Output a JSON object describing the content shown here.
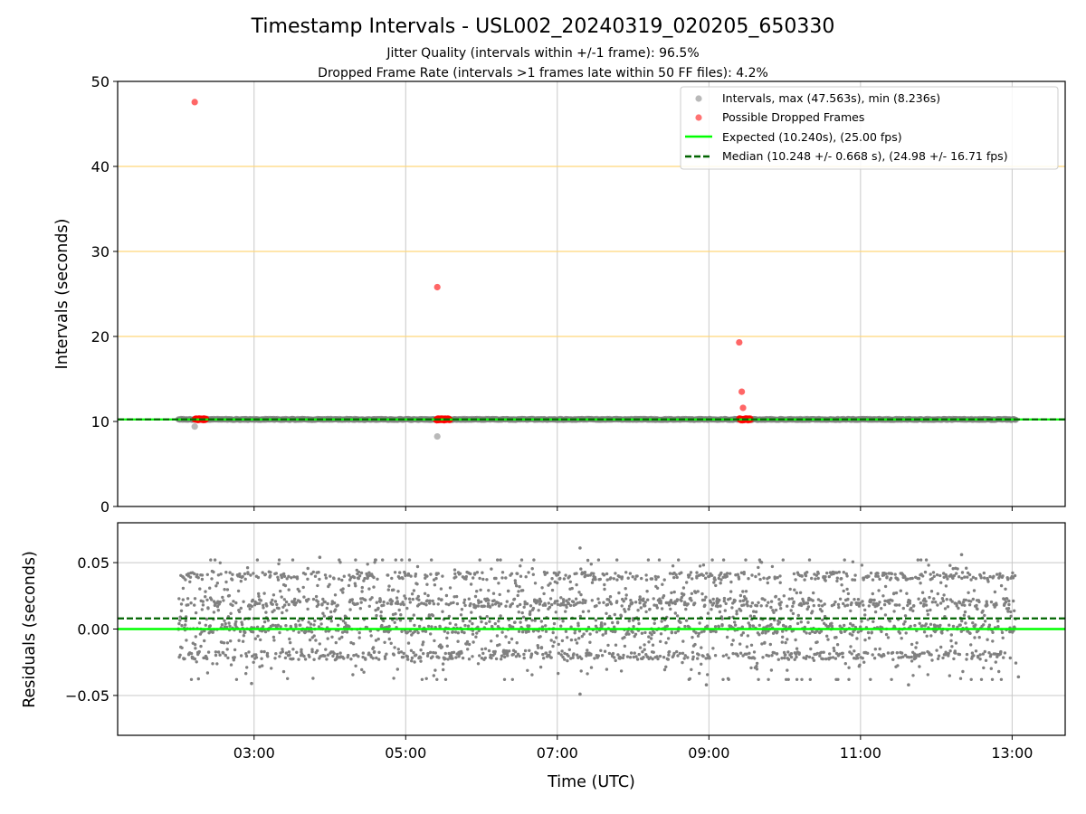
{
  "chart_data": [
    {
      "type": "scatter",
      "title": "Timestamp Intervals - USL002_20240319_020205_650330",
      "subtitle_lines": [
        "Jitter Quality (intervals within +/-1 frame): 96.5%",
        "Dropped Frame Rate (intervals >1 frames late within 50 FF files): 4.2%"
      ],
      "xlabel": "",
      "ylabel": "Intervals (seconds)",
      "xlim": [
        "01:12",
        "13:42"
      ],
      "ylim": [
        0,
        50
      ],
      "yticks": [
        0,
        10,
        20,
        30,
        40,
        50
      ],
      "xgrid": true,
      "ygrid_lines": [
        20,
        30,
        40
      ],
      "legend_position": "top-right",
      "series": [
        {
          "name": "Intervals, max (47.563s), min (8.236s)",
          "color": "#808080",
          "style": "points",
          "baseline_value": 10.24,
          "x_range": [
            "02:00",
            "13:03"
          ],
          "outliers": [
            {
              "x": "02:13",
              "y": 9.4
            },
            {
              "x": "05:25",
              "y": 8.236
            }
          ]
        },
        {
          "name": "Possible Dropped Frames",
          "color": "#ff0000",
          "style": "points",
          "points": [
            {
              "x": "02:13",
              "y": 47.563
            },
            {
              "x": "05:25",
              "y": 25.8
            },
            {
              "x": "09:24",
              "y": 19.3
            },
            {
              "x": "09:26",
              "y": 13.5
            },
            {
              "x": "09:27",
              "y": 11.6
            }
          ],
          "clusters": [
            {
              "from": "02:13",
              "to": "02:22",
              "y": 10.25
            },
            {
              "from": "05:24",
              "to": "05:35",
              "y": 10.25
            },
            {
              "from": "09:24",
              "to": "09:33",
              "y": 10.25
            }
          ]
        },
        {
          "name": "Expected (10.240s), (25.00 fps)",
          "color": "#00ff00",
          "style": "solid-line",
          "value": 10.24
        },
        {
          "name": "Median (10.248 +/- 0.668 s), (24.98 +/- 16.71 fps)",
          "color": "#006400",
          "style": "dashed-line",
          "value": 10.248
        }
      ]
    },
    {
      "type": "scatter",
      "xlabel": "Time (UTC)",
      "ylabel": "Residuals (seconds)",
      "xlim": [
        "01:12",
        "13:42"
      ],
      "ylim": [
        -0.08,
        0.08
      ],
      "yticks": [
        -0.05,
        0.0,
        0.05
      ],
      "ytick_labels": [
        "−0.05",
        "0.00",
        "0.05"
      ],
      "xticks": [
        "03:00",
        "05:00",
        "07:00",
        "09:00",
        "11:00",
        "13:00"
      ],
      "grid": true,
      "series": [
        {
          "name": "Residuals",
          "color": "#808080",
          "style": "points",
          "x_range": [
            "02:00",
            "13:03"
          ],
          "levels": [
            -0.02,
            0.0,
            0.02,
            0.04
          ],
          "extremes": [
            {
              "x": "07:18",
              "y": 0.061
            },
            {
              "x": "07:18",
              "y": -0.049
            },
            {
              "x": "03:52",
              "y": 0.054
            },
            {
              "x": "12:20",
              "y": 0.056
            },
            {
              "x": "11:38",
              "y": -0.042
            },
            {
              "x": "08:58",
              "y": -0.042
            },
            {
              "x": "02:58",
              "y": -0.041
            },
            {
              "x": "13:05",
              "y": -0.036
            }
          ]
        },
        {
          "name": "Expected",
          "color": "#00ff00",
          "style": "solid-line",
          "value": 0.0
        },
        {
          "name": "Median",
          "color": "#006400",
          "style": "dashed-line",
          "value": 0.008
        }
      ]
    }
  ]
}
